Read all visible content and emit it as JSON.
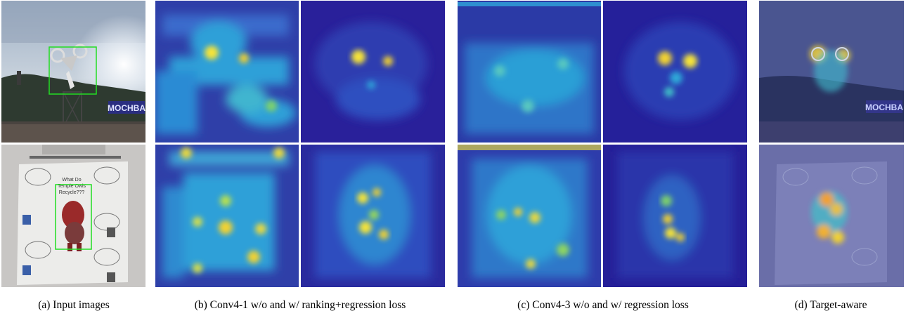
{
  "figure": {
    "captions": {
      "a": "(a)  Input images",
      "b": "(b)  Conv4-1 w/o and w/ ranking+regression loss",
      "c": "(c)  Conv4-3 w/o and w/ regression loss",
      "d": "(d)  Target-aware"
    },
    "rows": [
      {
        "name": "motocross",
        "sign_text": "MOCHBA"
      },
      {
        "name": "poster",
        "poster_title_lines": [
          "What Do",
          "Temple Owls",
          "Recycle???"
        ]
      }
    ],
    "colors": {
      "heat_low": "#2b1a8c",
      "heat_mid": "#1f9ee0",
      "heat_high": "#f7e437",
      "bbox": "#22dd22",
      "divider": "#ffffff"
    }
  }
}
